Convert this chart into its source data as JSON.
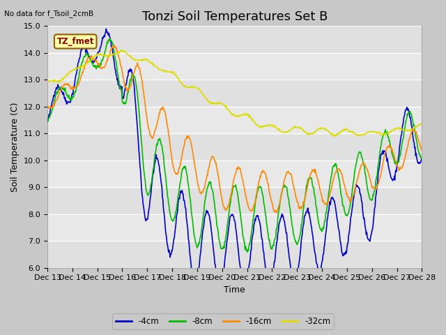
{
  "title": "Tonzi Soil Temperatures Set B",
  "no_data_text": "No data for f_Tsoil_2cmB",
  "tz_fmet_label": "TZ_fmet",
  "ylabel": "Soil Temperature (C)",
  "xlabel": "Time",
  "ylim": [
    6.0,
    15.0
  ],
  "yticks": [
    6.0,
    7.0,
    8.0,
    9.0,
    10.0,
    11.0,
    12.0,
    13.0,
    14.0,
    15.0
  ],
  "xtick_labels": [
    "Dec 13",
    "Dec 14",
    "Dec 15",
    "Dec 16",
    "Dec 17",
    "Dec 18",
    "Dec 19",
    "Dec 20",
    "Dec 21",
    "Dec 22",
    "Dec 23",
    "Dec 24",
    "Dec 25",
    "Dec 26",
    "Dec 27",
    "Dec 28"
  ],
  "colors": {
    "4cm": "#0000cc",
    "8cm": "#00bb00",
    "16cm": "#ff8800",
    "32cm": "#dddd00"
  },
  "legend_labels": [
    "-4cm",
    "-8cm",
    "-16cm",
    "-32cm"
  ],
  "fig_facecolor": "#c8c8c8",
  "ax_facecolor": "#e8e8e8",
  "grid_color": "#ffffff",
  "title_fontsize": 13,
  "label_fontsize": 9,
  "tick_fontsize": 8,
  "linewidth": 1.2
}
